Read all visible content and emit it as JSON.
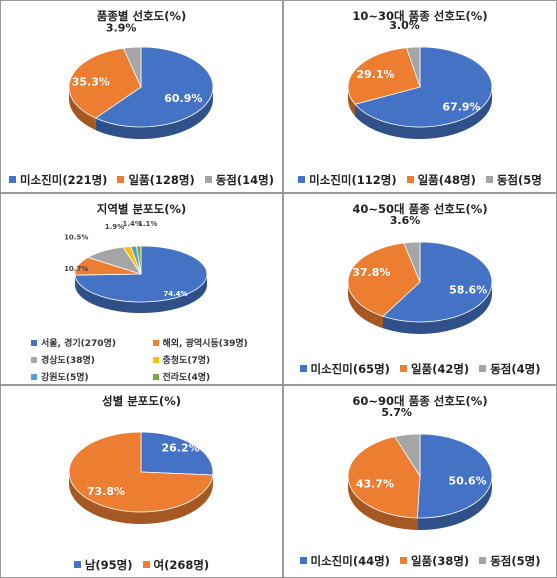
{
  "colors": {
    "blue": "#4472C4",
    "orange": "#ED7D31",
    "gray": "#A5A5A5",
    "yellow": "#FFC000",
    "lightblue": "#5B9BD5",
    "green": "#70AD47"
  },
  "chart_data": [
    {
      "type": "pie",
      "title": "품종별 선호도(%)",
      "categories": [
        "미소진미(221명)",
        "일품(128명)",
        "동점(14명)"
      ],
      "values": [
        60.9,
        35.3,
        3.9
      ],
      "labels": [
        "60.9%",
        "35.3%",
        "3.9%"
      ],
      "legend_placement": "bottom"
    },
    {
      "type": "pie",
      "title": "10~30대 품종 선호도(%)",
      "categories": [
        "미소진미(112명)",
        "일품(48명)",
        "동점(5명"
      ],
      "values": [
        67.9,
        29.1,
        3.0
      ],
      "labels": [
        "67.9%",
        "29.1%",
        "3.0%"
      ],
      "legend_placement": "bottom"
    },
    {
      "type": "pie",
      "title": "지역별 분포도(%)",
      "categories": [
        "서울, 경기(270명)",
        "해외, 광역시등(39명)",
        "경상도(38명)",
        "충청도(7명)",
        "강원도(5명)",
        "전라도(4명)"
      ],
      "values": [
        74.4,
        10.7,
        10.5,
        1.9,
        1.4,
        1.1
      ],
      "labels": [
        "74.4%",
        "10.7%",
        "10.5%",
        "1.9%",
        "1.4%",
        "1.1%"
      ],
      "legend_placement": "bottom"
    },
    {
      "type": "pie",
      "title": "40~50대 품종 선호도(%)",
      "categories": [
        "미소진미(65명)",
        "일품(42명)",
        "동점(4명)"
      ],
      "values": [
        58.6,
        37.8,
        3.6
      ],
      "labels": [
        "58.6%",
        "37.8%",
        "3.6%"
      ],
      "legend_placement": "bottom"
    },
    {
      "type": "pie",
      "title": "성별 분포도(%)",
      "categories": [
        "남(95명)",
        "여(268명)"
      ],
      "values": [
        26.2,
        73.8
      ],
      "labels": [
        "26.2%",
        "73.8%"
      ],
      "legend_placement": "bottom"
    },
    {
      "type": "pie",
      "title": "60~90대 품종 선호도(%)",
      "categories": [
        "미소진미(44명)",
        "일품(38명)",
        "동점(5명)"
      ],
      "values": [
        50.6,
        43.7,
        5.7
      ],
      "labels": [
        "50.6%",
        "43.7%",
        "5.7%"
      ],
      "legend_placement": "bottom"
    }
  ]
}
